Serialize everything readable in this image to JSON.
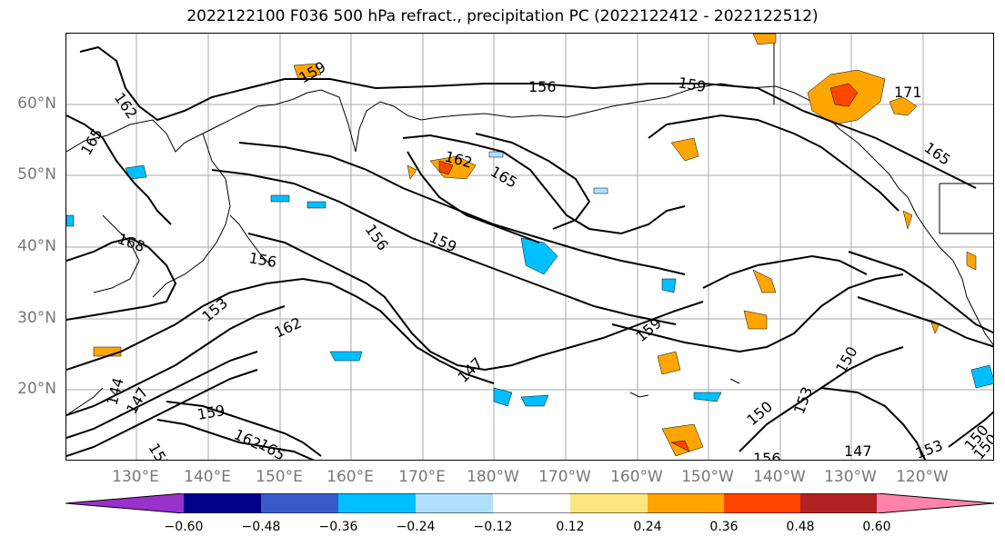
{
  "title": "2022122100 F036 500 hPa refract., precipitation PC (2022122412 - 2022122512)",
  "map": {
    "lat_labels": [
      "60°N",
      "50°N",
      "40°N",
      "30°N",
      "20°N"
    ],
    "lon_labels": [
      "130°E",
      "140°E",
      "150°E",
      "160°E",
      "170°E",
      "180°W",
      "170°W",
      "160°W",
      "150°W",
      "140°W",
      "130°W",
      "120°W"
    ],
    "contour_labels": [
      "162",
      "159",
      "156",
      "159",
      "165",
      "171",
      "165",
      "162",
      "165",
      "156",
      "159",
      "168",
      "156",
      "153",
      "162",
      "147",
      "159",
      "150",
      "153",
      "150",
      "147",
      "153",
      "150",
      "156",
      "159",
      "162",
      "165",
      "153",
      "144",
      "147",
      "150"
    ],
    "fill_colors": {
      "positive_low": "#ffe680",
      "positive_mid": "#ffa500",
      "positive_high": "#ff4500",
      "negative_low": "#b0e0ff",
      "negative_mid": "#00bfff"
    }
  },
  "colorbar": {
    "colors": [
      "#9932cc",
      "#00008b",
      "#3a5bc7",
      "#00bfff",
      "#b0e0ff",
      "#ffffff",
      "#ffe680",
      "#ffa500",
      "#ff4500",
      "#b22222",
      "#ff82ab"
    ],
    "ticks": [
      "−0.60",
      "−0.48",
      "−0.36",
      "−0.24",
      "−0.12",
      "0.12",
      "0.24",
      "0.36",
      "0.48",
      "0.60"
    ]
  }
}
